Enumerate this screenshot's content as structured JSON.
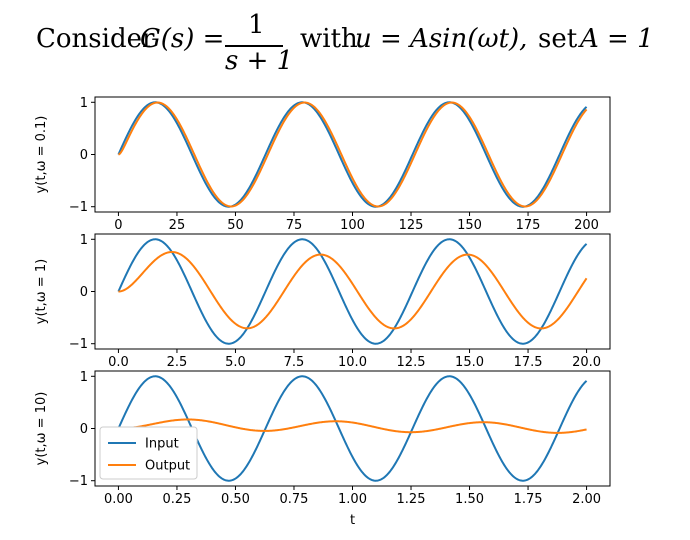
{
  "title": {
    "consider": "Consider",
    "lhs": "G(s) =",
    "numerator": "1",
    "denominator": "s + 1",
    "with": "with",
    "u_expr": "u = Asin(ωt),",
    "set_text": "set",
    "set_expr": "A = 1"
  },
  "colors": {
    "input": "#1f77b4",
    "output": "#ff7f0e"
  },
  "chart_data": [
    {
      "type": "line",
      "ylabel": "y(t,ω = 0.1)",
      "omega": 0.1,
      "xlim": [
        0,
        200
      ],
      "ylim": [
        -1,
        1
      ],
      "xticks": [
        0,
        25,
        50,
        75,
        100,
        125,
        150,
        175,
        200
      ],
      "xtick_labels": [
        "0",
        "25",
        "50",
        "75",
        "100",
        "125",
        "150",
        "175",
        "200"
      ],
      "yticks": [
        -1,
        0,
        1
      ],
      "ytick_labels": [
        "−1",
        "0",
        "1"
      ],
      "series": [
        {
          "name": "Input",
          "function": "sin(0.1t)"
        },
        {
          "name": "Output",
          "function": "A sin(0.1t − φ), gain 0.995, phase lag 0.0997 rad"
        }
      ]
    },
    {
      "type": "line",
      "ylabel": "y(t,ω = 1)",
      "omega": 1,
      "xlim": [
        0,
        20
      ],
      "ylim": [
        -1,
        1
      ],
      "xticks": [
        0,
        2.5,
        5,
        7.5,
        10,
        12.5,
        15,
        17.5,
        20
      ],
      "xtick_labels": [
        "0.0",
        "2.5",
        "5.0",
        "7.5",
        "10.0",
        "12.5",
        "15.0",
        "17.5",
        "20.0"
      ],
      "yticks": [
        -1,
        0,
        1
      ],
      "ytick_labels": [
        "−1",
        "0",
        "1"
      ],
      "series": [
        {
          "name": "Input",
          "function": "sin(t)"
        },
        {
          "name": "Output",
          "function": "0.707 sin(t − 0.785) + 0.5 e^(−t)"
        }
      ]
    },
    {
      "type": "line",
      "ylabel": "y(t,ω = 10)",
      "xlabel": "t",
      "omega": 10,
      "xlim": [
        0,
        2
      ],
      "ylim": [
        -1,
        1
      ],
      "xticks": [
        0,
        0.25,
        0.5,
        0.75,
        1,
        1.25,
        1.5,
        1.75,
        2
      ],
      "xtick_labels": [
        "0.00",
        "0.25",
        "0.50",
        "0.75",
        "1.00",
        "1.25",
        "1.50",
        "1.75",
        "2.00"
      ],
      "yticks": [
        -1,
        0,
        1
      ],
      "ytick_labels": [
        "−1",
        "0",
        "1"
      ],
      "legend": {
        "placement": "lower-left",
        "entries": [
          "Input",
          "Output"
        ]
      },
      "series": [
        {
          "name": "Input",
          "function": "sin(10t)"
        },
        {
          "name": "Output",
          "function": "0.0995 sin(10t − 1.471) + 0.099 e^(−t)"
        }
      ]
    }
  ]
}
